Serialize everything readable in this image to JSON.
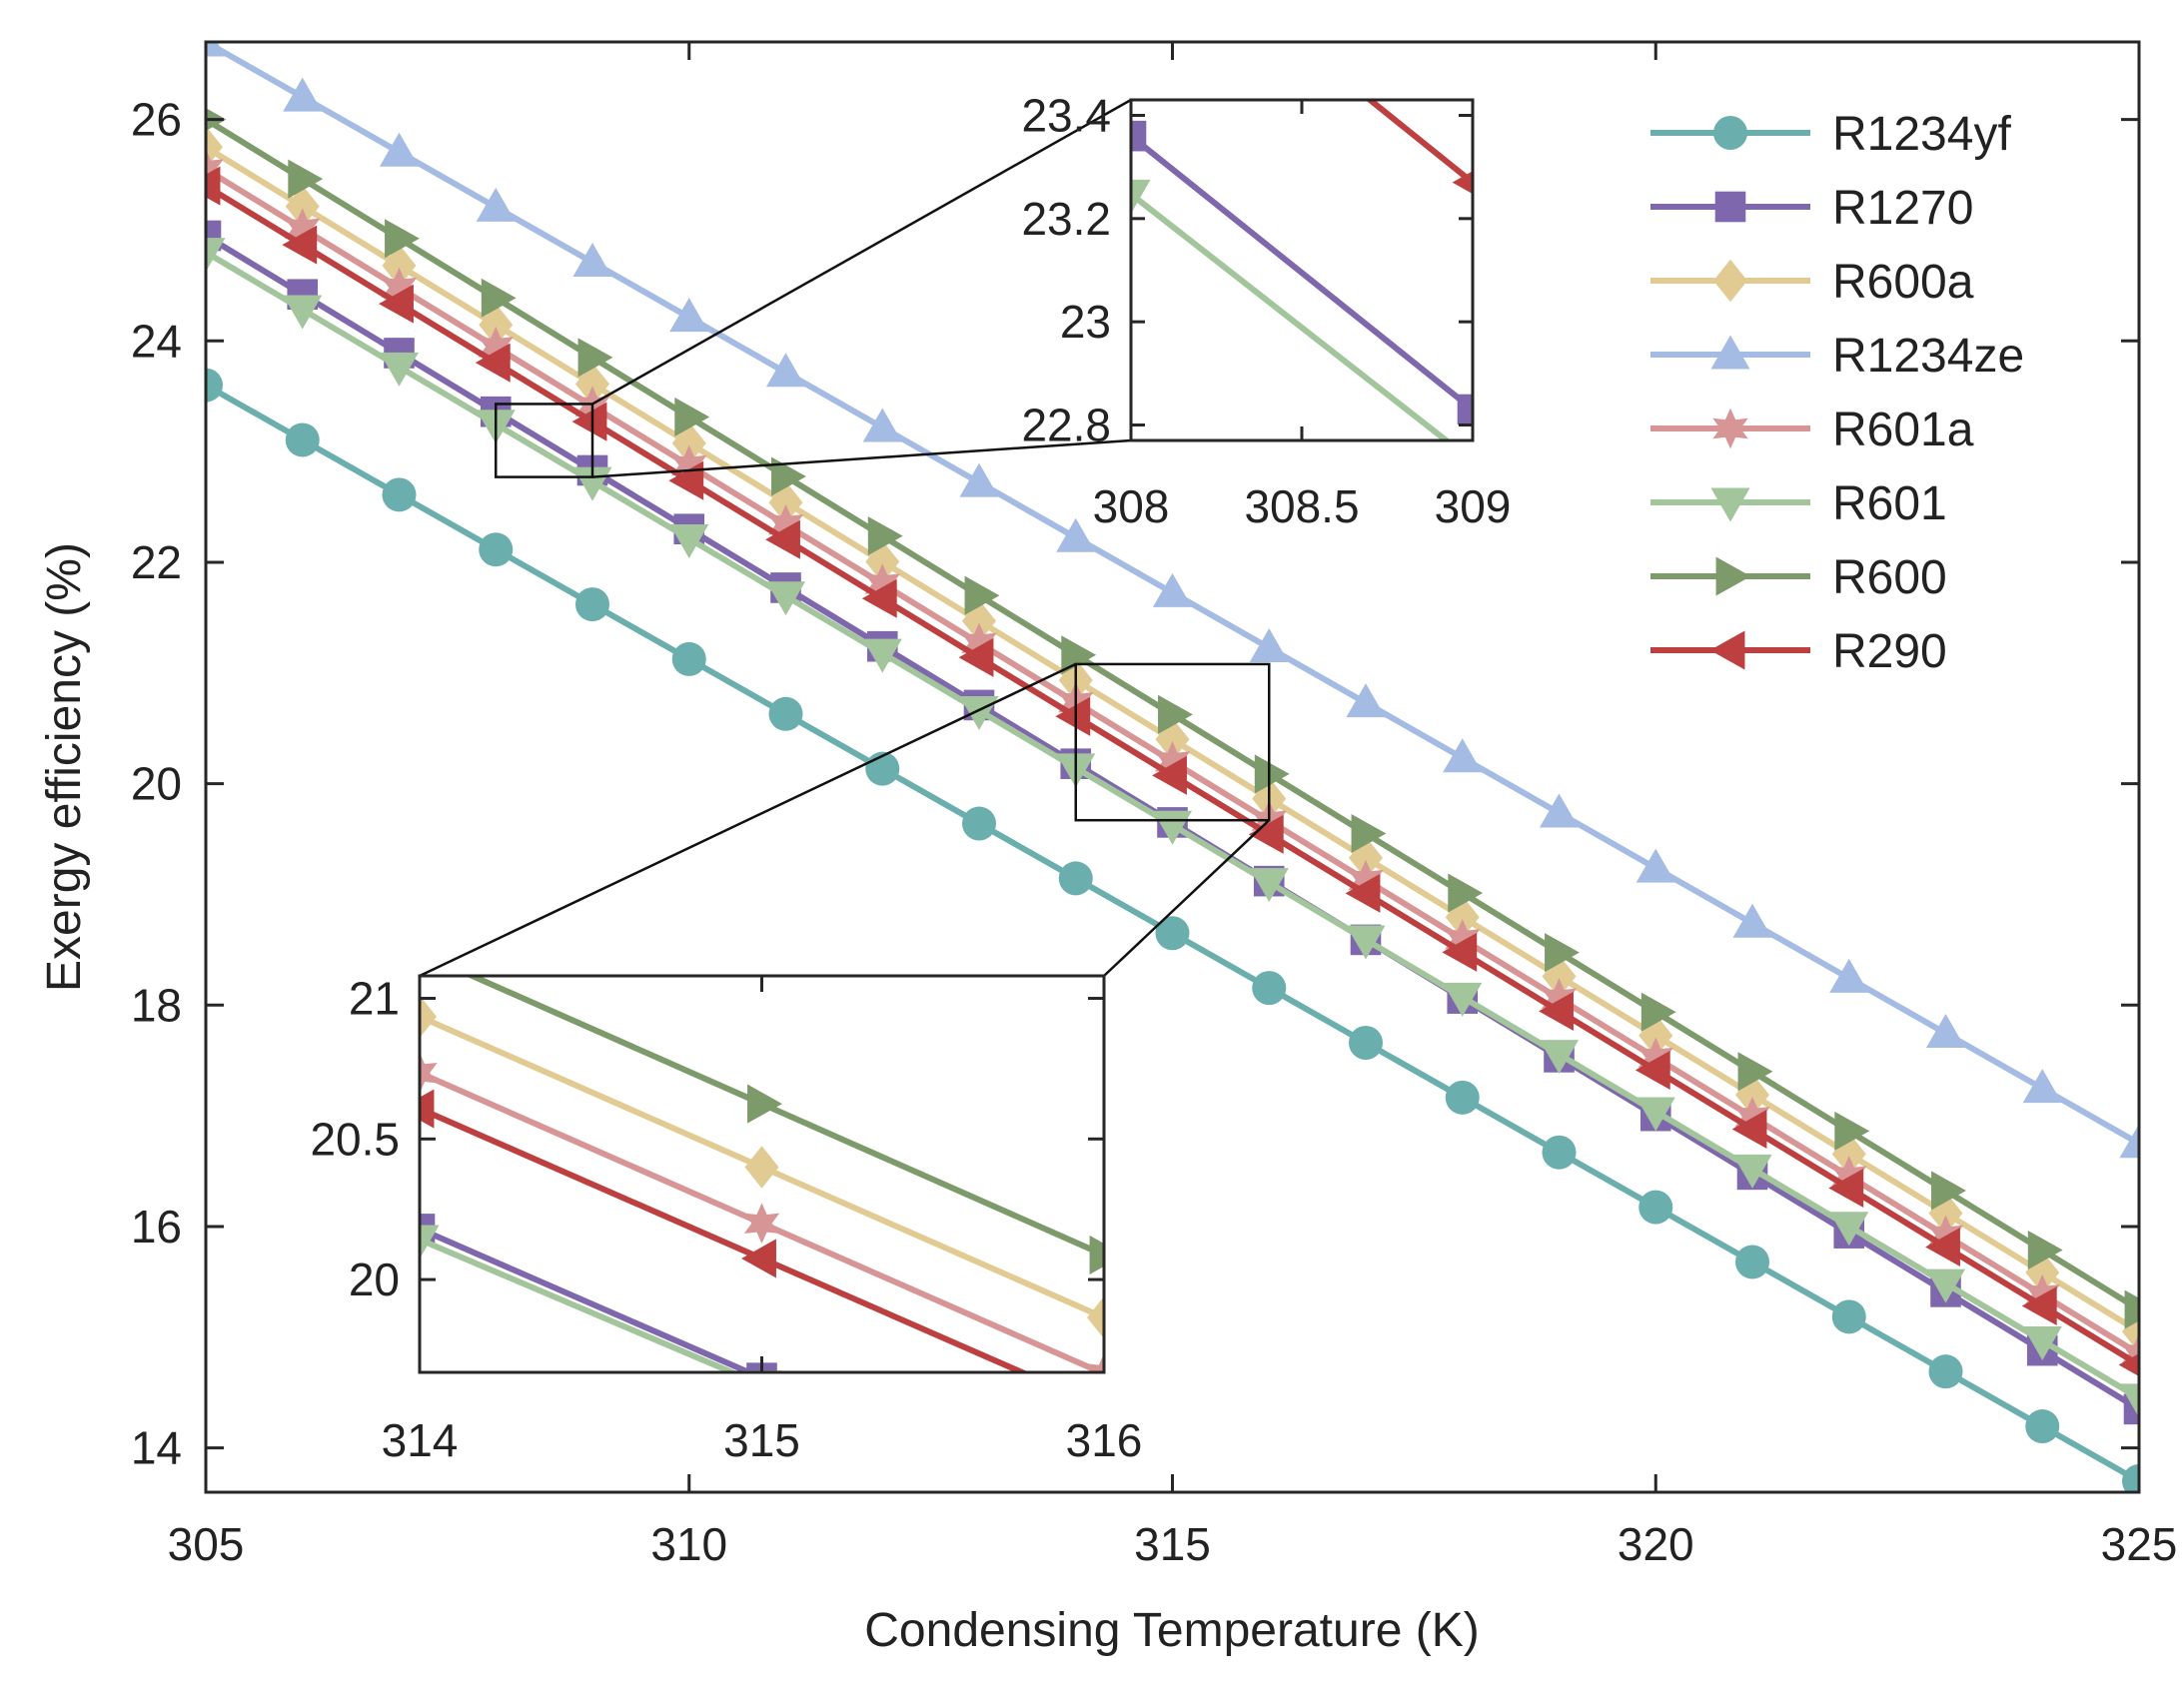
{
  "chart_data": {
    "type": "line",
    "xlabel": "Condensing Temperature (K)",
    "ylabel": "Exergy efficiency (%)",
    "xlim": [
      305,
      325
    ],
    "ylim": [
      13.6,
      26.7
    ],
    "xticks": [
      305,
      310,
      315,
      320,
      325
    ],
    "yticks": [
      14,
      16,
      18,
      20,
      22,
      24,
      26
    ],
    "x": [
      305,
      306,
      307,
      308,
      309,
      310,
      311,
      312,
      313,
      314,
      315,
      316,
      317,
      318,
      319,
      320,
      321,
      322,
      323,
      324,
      325
    ],
    "legend_position": "top-right",
    "series": [
      {
        "name": "R1234yf",
        "color": "#6aaeae",
        "marker": "circle",
        "start": 23.6,
        "end": 13.7
      },
      {
        "name": "R1270",
        "color": "#7e67ac",
        "marker": "square",
        "start": 24.95,
        "end": 14.35
      },
      {
        "name": "R600a",
        "color": "#e2cb92",
        "marker": "diamond",
        "start": 25.75,
        "end": 15.05
      },
      {
        "name": "R1234ze",
        "color": "#a4bbe3",
        "marker": "triangle-up",
        "start": 26.7,
        "end": 16.75
      },
      {
        "name": "R601a",
        "color": "#d89595",
        "marker": "hexagram",
        "start": 25.55,
        "end": 14.85
      },
      {
        "name": "R601",
        "color": "#a3c59c",
        "marker": "triangle-down",
        "start": 24.8,
        "end": 14.45
      },
      {
        "name": "R600",
        "color": "#7c9a6a",
        "marker": "triangle-right",
        "start": 26.0,
        "end": 15.25
      },
      {
        "name": "R290",
        "color": "#bd3f3f",
        "marker": "triangle-left",
        "start": 25.4,
        "end": 14.75
      }
    ],
    "insets": [
      {
        "xlim": [
          308,
          309
        ],
        "ylim": [
          22.77,
          23.43
        ],
        "xticks": [
          "308",
          "308.5",
          "309"
        ],
        "yticks": [
          "22.8",
          "23",
          "23.2",
          "23.4"
        ],
        "series": [
          "R1270",
          "R601",
          "R290"
        ]
      },
      {
        "xlim": [
          314,
          316
        ],
        "ylim": [
          19.67,
          21.08
        ],
        "xticks": [
          "314",
          "315",
          "316"
        ],
        "yticks": [
          "20",
          "20.5",
          "21"
        ],
        "series": [
          "R1270",
          "R601",
          "R600a",
          "R601a",
          "R600",
          "R290"
        ]
      }
    ]
  }
}
